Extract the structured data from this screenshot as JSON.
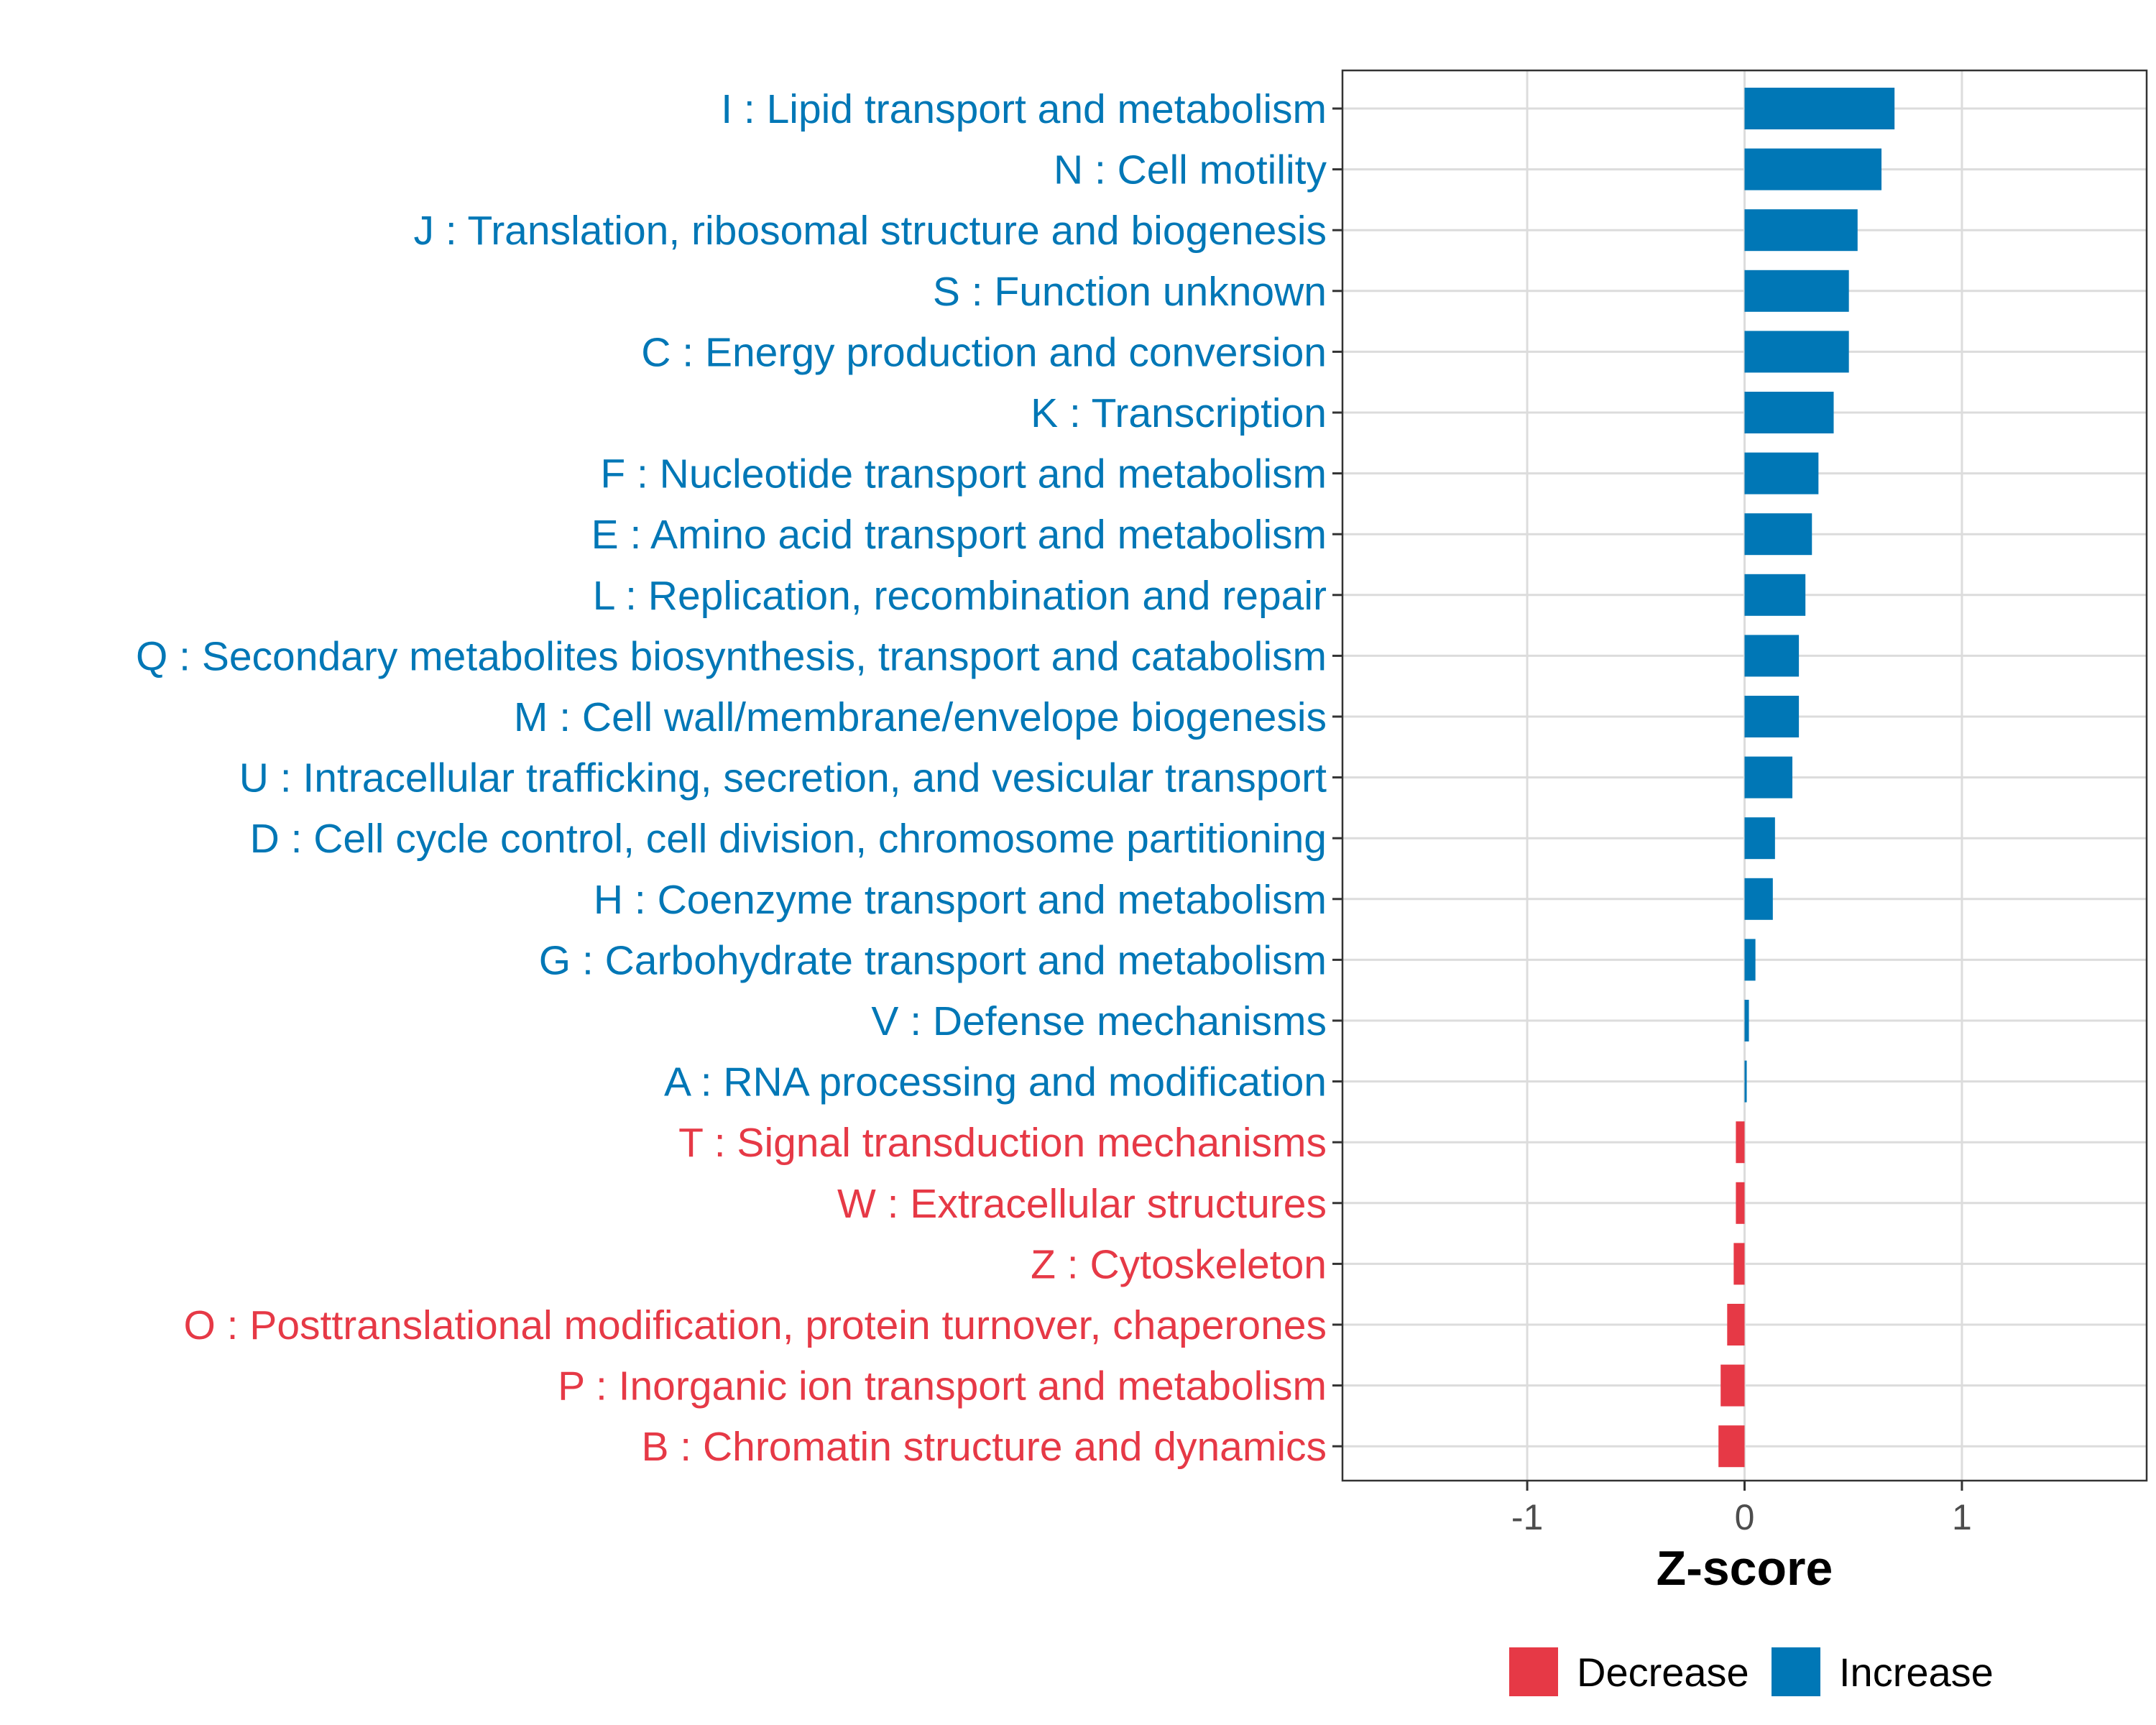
{
  "chart_data": {
    "type": "bar",
    "orientation": "horizontal",
    "xlabel": "Z-score",
    "ylabel": "",
    "xlim": [
      -1.85,
      1.85
    ],
    "xticks": [
      -1,
      0,
      1
    ],
    "xtick_labels": [
      "-1",
      "0",
      "1"
    ],
    "grid": true,
    "legend_position": "bottom",
    "colors": {
      "Decrease": "#e63946",
      "Increase": "#0077b6"
    },
    "legend": [
      {
        "label": "Decrease",
        "color": "#e63946"
      },
      {
        "label": "Increase",
        "color": "#0077b6"
      }
    ],
    "categories": [
      "I : Lipid transport and metabolism",
      "N : Cell motility",
      "J : Translation, ribosomal structure and biogenesis",
      "S : Function unknown",
      "C : Energy production and conversion",
      "K : Transcription",
      "F : Nucleotide transport and metabolism",
      "E : Amino acid transport and metabolism",
      "L : Replication, recombination and repair",
      "Q : Secondary metabolites biosynthesis, transport and catabolism",
      "M : Cell wall/membrane/envelope biogenesis",
      "U : Intracellular trafficking, secretion, and vesicular transport",
      "D : Cell cycle control, cell division, chromosome partitioning",
      "H : Coenzyme transport and metabolism",
      "G : Carbohydrate transport and metabolism",
      "V : Defense mechanisms",
      "A : RNA processing and modification",
      "T : Signal transduction mechanisms",
      "W : Extracellular structures",
      "Z : Cytoskeleton",
      "O : Posttranslational modification, protein turnover, chaperones",
      "P : Inorganic ion transport and metabolism",
      "B : Chromatin structure and dynamics"
    ],
    "values": [
      0.69,
      0.63,
      0.52,
      0.48,
      0.48,
      0.41,
      0.34,
      0.31,
      0.28,
      0.25,
      0.25,
      0.22,
      0.14,
      0.13,
      0.05,
      0.02,
      0.01,
      -0.04,
      -0.04,
      -0.05,
      -0.08,
      -0.11,
      -0.12
    ],
    "groups": [
      "Increase",
      "Increase",
      "Increase",
      "Increase",
      "Increase",
      "Increase",
      "Increase",
      "Increase",
      "Increase",
      "Increase",
      "Increase",
      "Increase",
      "Increase",
      "Increase",
      "Increase",
      "Increase",
      "Increase",
      "Decrease",
      "Decrease",
      "Decrease",
      "Decrease",
      "Decrease",
      "Decrease"
    ]
  }
}
